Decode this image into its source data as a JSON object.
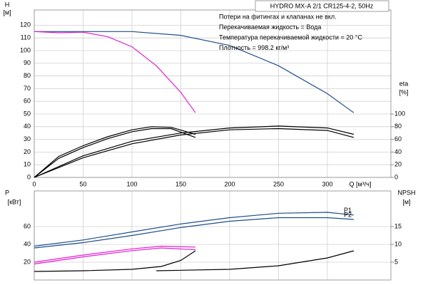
{
  "chart_data": [
    {
      "type": "line",
      "header": "HYDRO MX-A 2/1 CR125-4-2, 50Hz",
      "annotations": [
        "Потери на фитингах и клапанах не вкл.",
        "Перекачиваемая жидкость = Вода",
        "Температура перекачиваемой жидкости = 20 °C",
        "Плотность = 998.2 кг/м³"
      ],
      "ylabel": "H",
      "ylabel_unit": "[м]",
      "y2label": "eta",
      "y2label_unit": "[%]",
      "xlabel": "Q [м³/ч]",
      "xlim": [
        0,
        365
      ],
      "xticks": [
        0,
        50,
        100,
        150,
        200,
        250,
        300
      ],
      "ylim": [
        0,
        132
      ],
      "yticks": [
        0,
        10,
        20,
        30,
        40,
        50,
        60,
        70,
        80,
        90,
        100,
        110,
        120
      ],
      "y2lim": [
        0,
        264
      ],
      "y2ticks": [
        0,
        20,
        40,
        60,
        80,
        100
      ],
      "grid": true,
      "series": [
        {
          "color": "#1f4e8c",
          "x": [
            0,
            50,
            100,
            150,
            200,
            250,
            300,
            327
          ],
          "values": [
            115,
            115,
            115,
            112,
            104,
            88,
            66,
            51
          ]
        },
        {
          "color": "#e020d0",
          "x": [
            0,
            25,
            50,
            75,
            100,
            125,
            150,
            165
          ],
          "values": [
            115,
            114,
            114.5,
            111,
            103,
            88,
            67,
            51
          ]
        },
        {
          "color": "#000000",
          "axis": "y2",
          "x": [
            0,
            25,
            50,
            75,
            100,
            120,
            140,
            165
          ],
          "values": [
            0,
            33,
            50,
            64,
            75,
            80,
            79,
            68
          ]
        },
        {
          "color": "#000000",
          "axis": "y2",
          "x": [
            0,
            25,
            50,
            75,
            100,
            120,
            140,
            165
          ],
          "values": [
            0,
            30,
            47,
            61,
            72,
            77,
            77,
            63
          ]
        },
        {
          "color": "#000000",
          "axis": "y2",
          "x": [
            0,
            50,
            100,
            150,
            200,
            250,
            300,
            327
          ],
          "values": [
            0,
            34,
            57,
            70,
            78,
            81,
            78,
            68
          ]
        },
        {
          "color": "#000000",
          "axis": "y2",
          "x": [
            0,
            50,
            100,
            150,
            200,
            250,
            300,
            327
          ],
          "values": [
            0,
            31,
            53,
            67,
            75,
            77,
            74,
            63
          ]
        }
      ]
    },
    {
      "type": "line",
      "ylabel": "P",
      "ylabel_unit": "[кВт]",
      "y2label": "NPSH",
      "y2label_unit": "[м]",
      "xlim": [
        0,
        365
      ],
      "xticks": [
        0,
        50,
        100,
        150,
        200,
        250,
        300
      ],
      "ylim": [
        0,
        100
      ],
      "yticks": [
        20,
        40,
        60
      ],
      "y2lim": [
        0,
        25
      ],
      "y2ticks": [
        5,
        10,
        15
      ],
      "grid": true,
      "series": [
        {
          "name": "P1",
          "color": "#1f4e8c",
          "x": [
            0,
            50,
            100,
            150,
            200,
            250,
            300,
            327
          ],
          "values": [
            38,
            45,
            54,
            63,
            70,
            75,
            76,
            73
          ]
        },
        {
          "name": "P2",
          "color": "#1f4e8c",
          "x": [
            0,
            50,
            100,
            150,
            200,
            250,
            300,
            327
          ],
          "values": [
            36,
            42,
            50,
            59,
            66,
            70,
            70,
            68
          ]
        },
        {
          "color": "#e020d0",
          "x": [
            0,
            50,
            100,
            130,
            165
          ],
          "values": [
            20,
            28,
            35,
            38,
            37
          ]
        },
        {
          "color": "#e020d0",
          "x": [
            0,
            50,
            100,
            130,
            165
          ],
          "values": [
            18,
            26,
            33,
            36,
            34
          ]
        },
        {
          "color": "#000000",
          "axis": "y2",
          "x": [
            0,
            50,
            100,
            130,
            150,
            165
          ],
          "values": [
            2.4,
            2.6,
            3,
            3.8,
            5.5,
            8.2
          ]
        },
        {
          "color": "#000000",
          "axis": "y2",
          "x": [
            125,
            200,
            250,
            300,
            327
          ],
          "values": [
            2.6,
            3,
            4,
            6.2,
            8.2
          ]
        }
      ]
    }
  ]
}
